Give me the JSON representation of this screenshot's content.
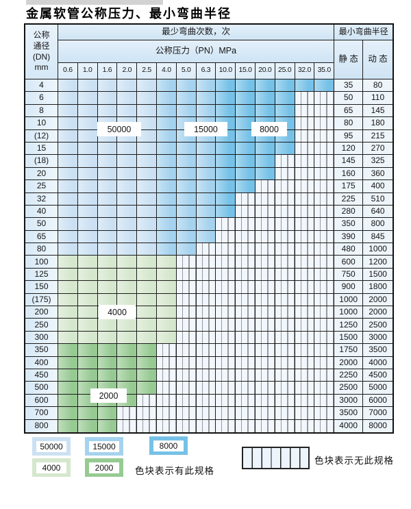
{
  "title": "金属软管公称压力、最小弯曲半径",
  "chart_data": {
    "type": "table",
    "title": "金属软管公称压力、最小弯曲半径",
    "row_header_lines": [
      "公称",
      "通径",
      "(DN)",
      "mm"
    ],
    "col_groups": {
      "bend_cycles": "最少弯曲次数，次",
      "pressure": "公称压力（PN）MPa",
      "radius": "最小弯曲半径",
      "static": "静 态",
      "dynamic": "动 态"
    },
    "pressures": [
      "0.6",
      "1.0",
      "1.6",
      "2.0",
      "2.5",
      "4.0",
      "5.0",
      "6.3",
      "10.0",
      "15.0",
      "20.0",
      "25.0",
      "32.0",
      "35.0"
    ],
    "band_order": [
      "50000",
      "15000",
      "8000",
      "4000",
      "2000"
    ],
    "rows": [
      {
        "dn": "4",
        "bands": [
          5,
          3,
          6,
          0,
          0
        ],
        "static": "35",
        "dynamic": "80"
      },
      {
        "dn": "6",
        "bands": [
          5,
          3,
          4,
          0,
          0
        ],
        "static": "50",
        "dynamic": "110"
      },
      {
        "dn": "8",
        "bands": [
          5,
          3,
          4,
          0,
          0
        ],
        "static": "65",
        "dynamic": "145"
      },
      {
        "dn": "10",
        "bands": [
          5,
          3,
          4,
          0,
          0
        ],
        "static": "80",
        "dynamic": "180"
      },
      {
        "dn": "(12)",
        "bands": [
          5,
          3,
          4,
          0,
          0
        ],
        "static": "95",
        "dynamic": "215"
      },
      {
        "dn": "15",
        "bands": [
          5,
          3,
          4,
          0,
          0
        ],
        "static": "120",
        "dynamic": "270"
      },
      {
        "dn": "(18)",
        "bands": [
          5,
          3,
          3,
          0,
          0
        ],
        "static": "145",
        "dynamic": "325"
      },
      {
        "dn": "20",
        "bands": [
          5,
          3,
          3,
          0,
          0
        ],
        "static": "160",
        "dynamic": "360"
      },
      {
        "dn": "25",
        "bands": [
          5,
          3,
          2,
          0,
          0
        ],
        "static": "175",
        "dynamic": "400"
      },
      {
        "dn": "32",
        "bands": [
          5,
          3,
          1,
          0,
          0
        ],
        "static": "225",
        "dynamic": "510"
      },
      {
        "dn": "40",
        "bands": [
          5,
          3,
          1,
          0,
          0
        ],
        "static": "280",
        "dynamic": "640"
      },
      {
        "dn": "50",
        "bands": [
          5,
          3,
          0,
          0,
          0
        ],
        "static": "350",
        "dynamic": "800"
      },
      {
        "dn": "65",
        "bands": [
          5,
          3,
          0,
          0,
          0
        ],
        "static": "390",
        "dynamic": "845"
      },
      {
        "dn": "80",
        "bands": [
          5,
          2,
          0,
          0,
          0
        ],
        "static": "480",
        "dynamic": "1000"
      },
      {
        "dn": "100",
        "bands": [
          0,
          0,
          0,
          6,
          0
        ],
        "static": "600",
        "dynamic": "1200"
      },
      {
        "dn": "125",
        "bands": [
          0,
          0,
          0,
          6,
          0
        ],
        "static": "750",
        "dynamic": "1500"
      },
      {
        "dn": "150",
        "bands": [
          0,
          0,
          0,
          6,
          0
        ],
        "static": "900",
        "dynamic": "1800"
      },
      {
        "dn": "(175)",
        "bands": [
          0,
          0,
          0,
          6,
          0
        ],
        "static": "1000",
        "dynamic": "2000"
      },
      {
        "dn": "200",
        "bands": [
          0,
          0,
          0,
          6,
          0
        ],
        "static": "1000",
        "dynamic": "2000"
      },
      {
        "dn": "250",
        "bands": [
          0,
          0,
          0,
          6,
          0
        ],
        "static": "1250",
        "dynamic": "2500"
      },
      {
        "dn": "300",
        "bands": [
          0,
          0,
          0,
          6,
          0
        ],
        "static": "1500",
        "dynamic": "3000"
      },
      {
        "dn": "350",
        "bands": [
          0,
          0,
          0,
          0,
          5
        ],
        "static": "1750",
        "dynamic": "3500"
      },
      {
        "dn": "400",
        "bands": [
          0,
          0,
          0,
          0,
          5
        ],
        "static": "2000",
        "dynamic": "4000"
      },
      {
        "dn": "450",
        "bands": [
          0,
          0,
          0,
          0,
          5
        ],
        "static": "2250",
        "dynamic": "4500"
      },
      {
        "dn": "500",
        "bands": [
          0,
          0,
          0,
          0,
          5
        ],
        "static": "2500",
        "dynamic": "5000"
      },
      {
        "dn": "600",
        "bands": [
          0,
          0,
          0,
          0,
          4
        ],
        "static": "3000",
        "dynamic": "6000"
      },
      {
        "dn": "700",
        "bands": [
          0,
          0,
          0,
          0,
          3
        ],
        "static": "3500",
        "dynamic": "7000"
      },
      {
        "dn": "800",
        "bands": [
          0,
          0,
          0,
          0,
          3
        ],
        "static": "4000",
        "dynamic": "8000"
      }
    ]
  },
  "overlay_labels": [
    "50000",
    "15000",
    "8000",
    "4000",
    "2000"
  ],
  "legend": {
    "items": [
      {
        "value": "50000",
        "color": "#cbe1f3"
      },
      {
        "value": "15000",
        "color": "#a5d2ee"
      },
      {
        "value": "8000",
        "color": "#76c1e7"
      },
      {
        "value": "4000",
        "color": "#d5e7cd"
      },
      {
        "value": "2000",
        "color": "#97ca93"
      }
    ],
    "available_note": "色块表示有此规格",
    "unavailable_note": "色块表示无此规格"
  },
  "colors": {
    "band_50000": "#cbe1f3",
    "band_15000": "#a5d2ee",
    "band_8000": "#76c1e7",
    "band_4000": "#d5e7cd",
    "band_2000": "#97ca93",
    "grid_line": "#1b1b1b",
    "nospec_bg": "#f2f7fd"
  }
}
